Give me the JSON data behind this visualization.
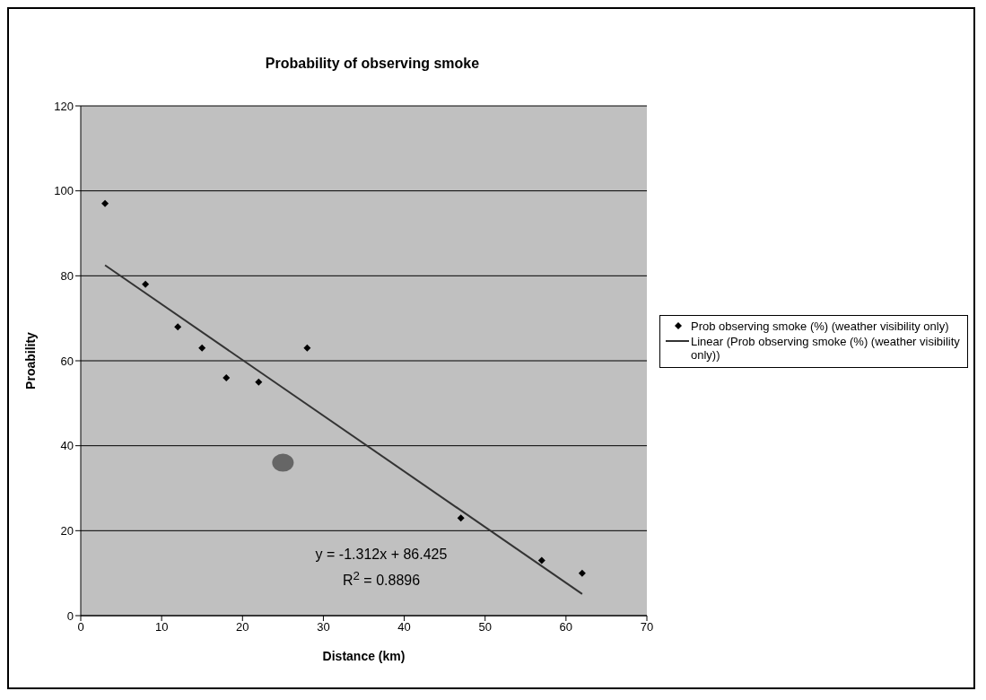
{
  "chart_data": {
    "type": "scatter",
    "title": "Probability of observing smoke",
    "xlabel": "Distance (km)",
    "ylabel": "Proability",
    "xlim": [
      0,
      70
    ],
    "xticks": [
      0,
      10,
      20,
      30,
      40,
      50,
      60,
      70
    ],
    "ylim": [
      0,
      120
    ],
    "yticks": [
      0,
      20,
      40,
      60,
      80,
      100,
      120
    ],
    "grid": "y",
    "legend": "right",
    "series": [
      {
        "name": "Prob observing smoke (%) (weather visibility only)",
        "marker": "diamond",
        "color": "#000000",
        "x": [
          3,
          8,
          12,
          15,
          18,
          22,
          28,
          47,
          57,
          62
        ],
        "values": [
          97,
          78,
          68,
          63,
          56,
          55,
          63,
          23,
          13,
          10
        ]
      },
      {
        "name": "Linear (Prob observing smoke (%) (weather visibility only))",
        "type": "line",
        "marker": "none",
        "color": "#333333",
        "x": [
          3,
          62
        ],
        "values": [
          82.5,
          5.1
        ]
      },
      {
        "marker": "circle",
        "color": "#666666",
        "x": [
          25
        ],
        "values": [
          36
        ]
      }
    ],
    "annotations": [
      "y = -1.312x + 86.425",
      "R$^{2}$ = 0.8896"
    ]
  }
}
